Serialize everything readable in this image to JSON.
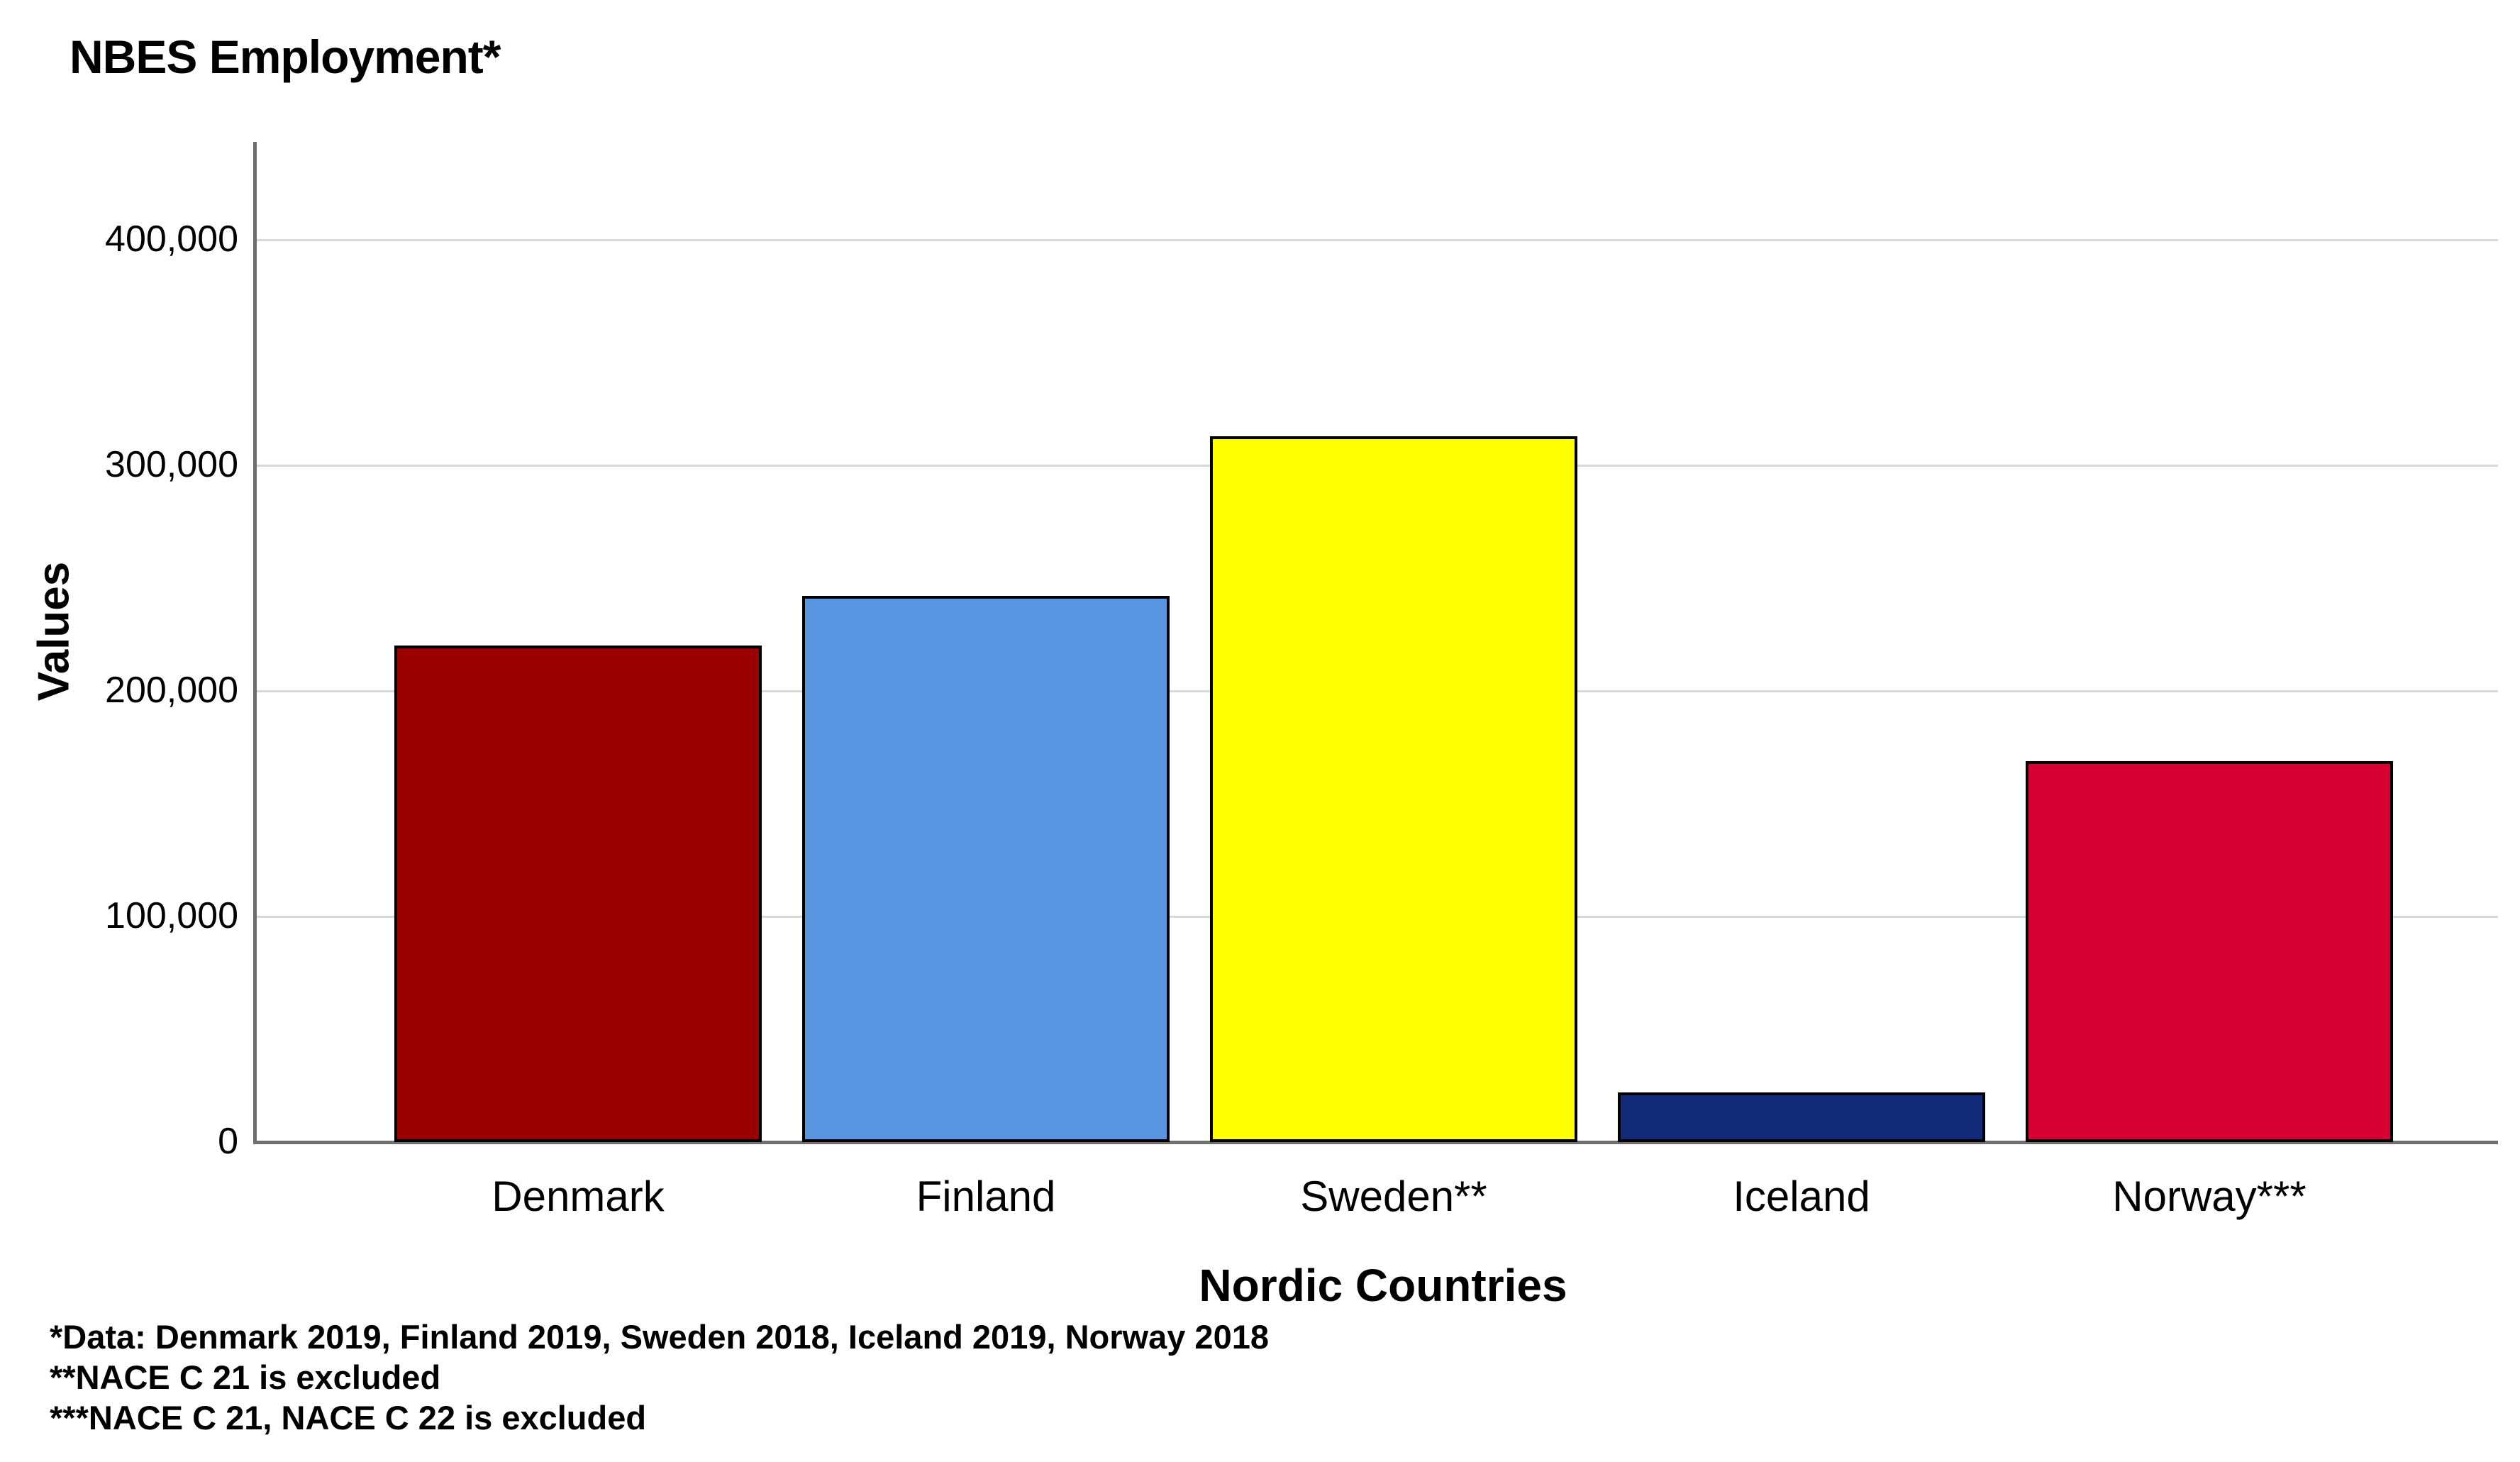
{
  "chart_data": {
    "type": "bar",
    "title": "NBES Employment*",
    "xlabel": "Nordic Countries",
    "ylabel": "Values",
    "categories": [
      "Denmark",
      "Finland",
      "Sweden**",
      "Iceland",
      "Norway***"
    ],
    "values": [
      220000,
      242000,
      313000,
      22000,
      169000
    ],
    "bar_colors": [
      "#9a0000",
      "#5896e2",
      "#ffff00",
      "#13297a",
      "#d80032"
    ],
    "bar_border_color": "#000000",
    "ylim": [
      0,
      440000
    ],
    "yticks": [
      0,
      100000,
      200000,
      300000,
      400000
    ],
    "ytick_labels": [
      "0",
      "100,000",
      "200,000",
      "300,000",
      "400,000"
    ],
    "grid": "horizontal",
    "gridline_color": "#d8d8d8",
    "axis_color": "#6e6e6e",
    "legend": "none"
  },
  "footnotes": [
    "*Data: Denmark 2019, Finland 2019, Sweden 2018, Iceland 2019, Norway 2018",
    "**NACE C 21 is excluded",
    "***NACE C 21, NACE C 22 is excluded"
  ]
}
